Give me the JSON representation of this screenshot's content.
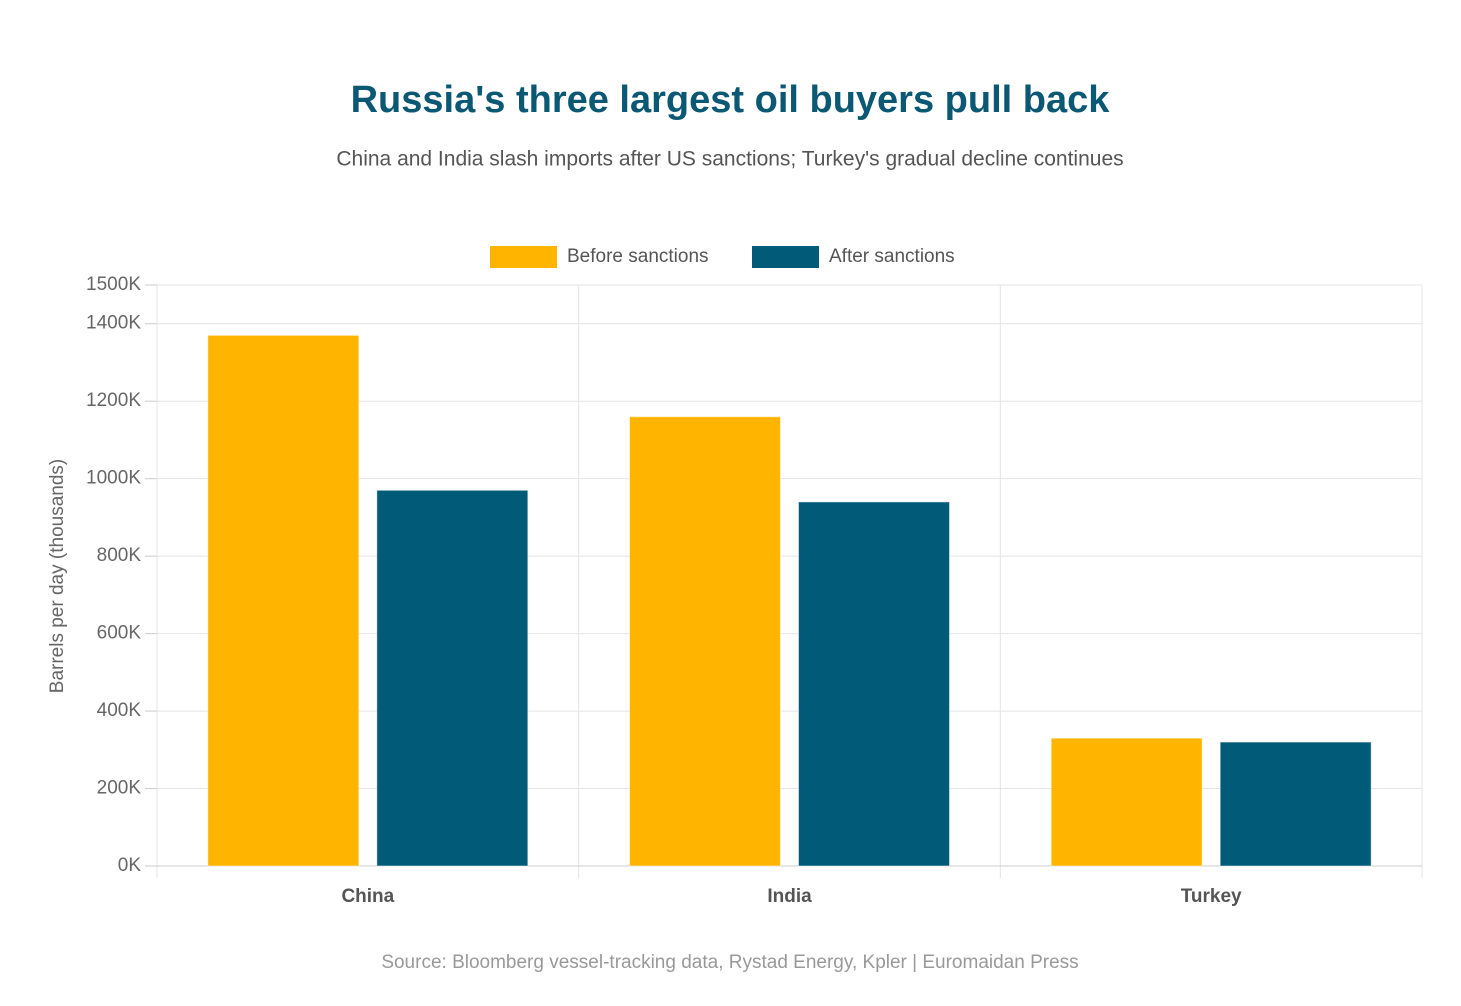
{
  "chart_data": {
    "type": "bar",
    "title": "Russia's three largest oil buyers pull back",
    "subtitle": "China and India slash imports after US sanctions; Turkey's gradual decline continues",
    "y_label": "Barrels per day (thousands)",
    "source": "Source: Bloomberg vessel-tracking data, Rystad Energy, Kpler | Euromaidan Press",
    "categories": [
      "China",
      "India",
      "Turkey"
    ],
    "series": [
      {
        "name": "Before sanctions",
        "color": "#ffb400",
        "values": [
          1370,
          1160,
          330
        ]
      },
      {
        "name": "After sanctions",
        "color": "#005a78",
        "values": [
          970,
          940,
          320
        ]
      }
    ],
    "ylim": [
      0,
      1500
    ],
    "yticks": [
      {
        "value": 0,
        "label": "0K"
      },
      {
        "value": 200,
        "label": "200K"
      },
      {
        "value": 400,
        "label": "400K"
      },
      {
        "value": 600,
        "label": "600K"
      },
      {
        "value": 800,
        "label": "800K"
      },
      {
        "value": 1000,
        "label": "1000K"
      },
      {
        "value": 1200,
        "label": "1200K"
      },
      {
        "value": 1400,
        "label": "1400K"
      },
      {
        "value": 1500,
        "label": "1500K"
      }
    ],
    "grid": true,
    "legend": "top"
  }
}
